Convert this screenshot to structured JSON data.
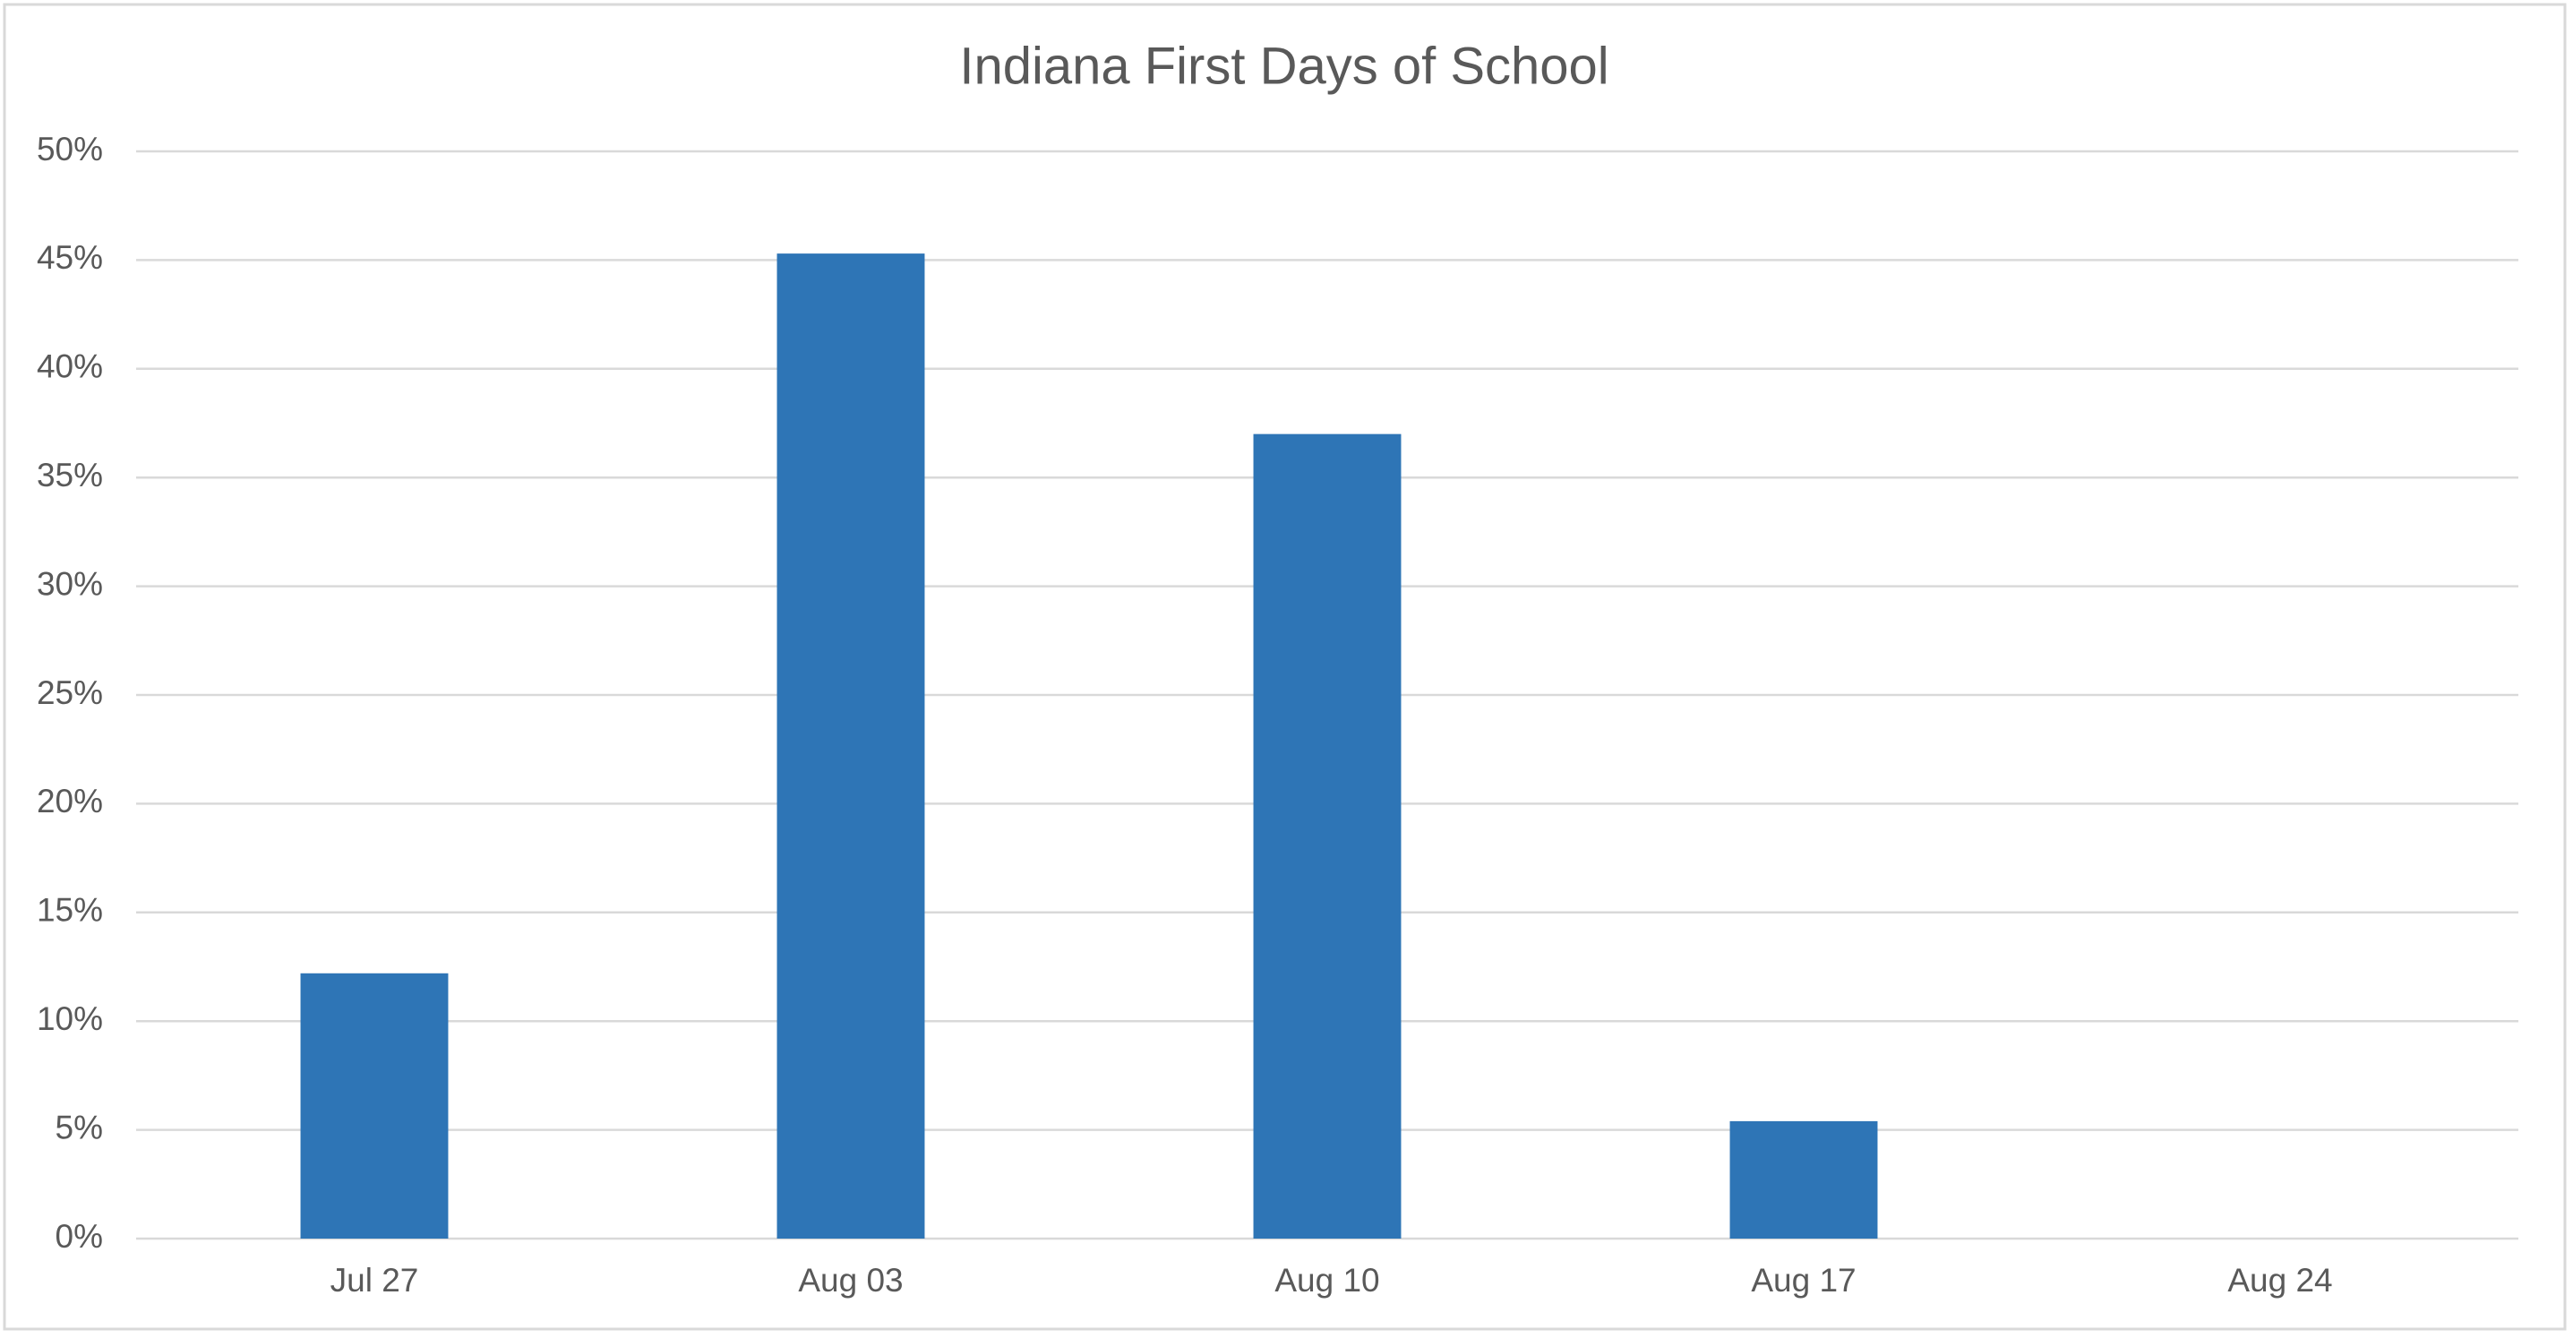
{
  "chart_data": {
    "type": "bar",
    "title": "Indiana First Days of School",
    "categories": [
      "Jul 27",
      "Aug 03",
      "Aug 10",
      "Aug 17",
      "Aug 24"
    ],
    "values": [
      12.2,
      45.3,
      37.0,
      5.4,
      0
    ],
    "color": "#2e75b6",
    "ylim": [
      0,
      50
    ],
    "yticks": [
      {
        "value": 0,
        "label": "0%"
      },
      {
        "value": 5,
        "label": "5%"
      },
      {
        "value": 10,
        "label": "10%"
      },
      {
        "value": 15,
        "label": "15%"
      },
      {
        "value": 20,
        "label": "20%"
      },
      {
        "value": 25,
        "label": "25%"
      },
      {
        "value": 30,
        "label": "30%"
      },
      {
        "value": 35,
        "label": "35%"
      },
      {
        "value": 40,
        "label": "40%"
      },
      {
        "value": 45,
        "label": "45%"
      },
      {
        "value": 50,
        "label": "50%"
      }
    ],
    "grid": true
  }
}
